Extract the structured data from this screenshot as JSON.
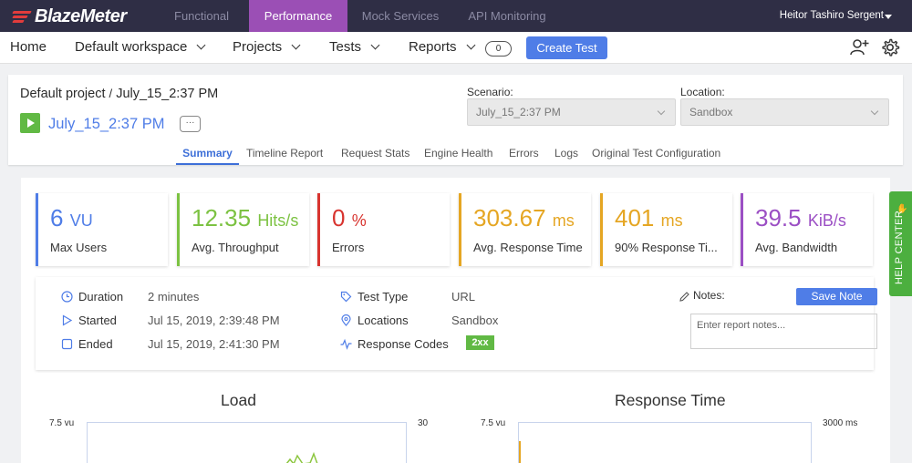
{
  "topbar": {
    "logo_text": "BlazeMeter",
    "tabs": [
      "Functional",
      "Performance",
      "Mock Services",
      "API Monitoring"
    ],
    "active_tab": "Performance",
    "user_name": "Heitor Tashiro Sergent"
  },
  "navbar": {
    "home": "Home",
    "workspace": "Default workspace",
    "projects": "Projects",
    "tests": "Tests",
    "reports": "Reports",
    "reports_count": "0",
    "create_test": "Create Test"
  },
  "project": {
    "project_name": "Default project",
    "separator": "/",
    "report_name": "July_15_2:37 PM",
    "test_name": "July_15_2:37 PM",
    "more": "···",
    "scenario_label": "Scenario:",
    "scenario_value": "July_15_2:37 PM",
    "location_label": "Location:",
    "location_value": "Sandbox"
  },
  "report_tabs": [
    "Summary",
    "Timeline Report",
    "Request Stats",
    "Engine Health",
    "Errors",
    "Logs",
    "Original Test Configuration"
  ],
  "kpis": [
    {
      "value": "6",
      "unit": "VU",
      "label": "Max Users",
      "color": "#4f7de7"
    },
    {
      "value": "12.35",
      "unit": "Hits/s",
      "label": "Avg. Throughput",
      "color": "#7cc242"
    },
    {
      "value": "0",
      "unit": "%",
      "label": "Errors",
      "color": "#d8342f"
    },
    {
      "value": "303.67",
      "unit": "ms",
      "label": "Avg. Response Time",
      "color": "#e5a623"
    },
    {
      "value": "401",
      "unit": "ms",
      "label": "90% Response Ti...",
      "color": "#e5a623"
    },
    {
      "value": "39.5",
      "unit": "KiB/s",
      "label": "Avg. Bandwidth",
      "color": "#9b4fc4"
    }
  ],
  "summary": {
    "duration_label": "Duration",
    "duration_value": "2 minutes",
    "started_label": "Started",
    "started_value": "Jul 15, 2019, 2:39:48 PM",
    "ended_label": "Ended",
    "ended_value": "Jul 15, 2019, 2:41:30 PM",
    "test_type_label": "Test Type",
    "test_type_value": "URL",
    "locations_label": "Locations",
    "locations_value": "Sandbox",
    "response_codes_label": "Response Codes",
    "response_codes_value": "2xx",
    "notes_label": "Notes:",
    "save_note": "Save Note",
    "notes_placeholder": "Enter report notes..."
  },
  "charts": {
    "load_title": "Load",
    "load_left_axis_top": "7.5 vu",
    "load_right_axis_top": "30",
    "response_title": "Response Time",
    "response_left_axis_top": "7.5 vu",
    "response_right_axis_top": "3000 ms"
  },
  "help_center": "HELP CENTER"
}
